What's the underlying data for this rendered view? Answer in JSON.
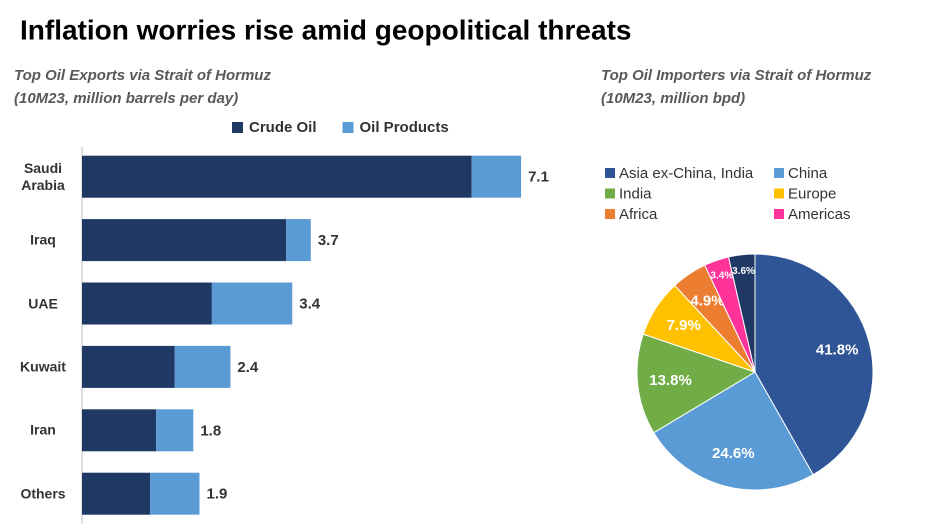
{
  "title": "Inflation worries rise amid geopolitical threats",
  "chart_data": [
    {
      "type": "bar",
      "orientation": "horizontal",
      "stacked": true,
      "subtitle": [
        "Top Oil Exports via Strait of Hormuz",
        "(10M23, million barrels per day)"
      ],
      "categories": [
        "Saudi Arabia",
        "Iraq",
        "UAE",
        "Kuwait",
        "Iran",
        "Others"
      ],
      "series": [
        {
          "name": "Crude Oil",
          "color": "#1f3864",
          "values": [
            6.3,
            3.3,
            2.1,
            1.5,
            1.2,
            1.1
          ]
        },
        {
          "name": "Oil Products",
          "color": "#5b9bd5",
          "values": [
            0.8,
            0.4,
            1.3,
            0.9,
            0.6,
            0.8
          ]
        }
      ],
      "totals": [
        7.1,
        3.7,
        3.4,
        2.4,
        1.8,
        1.9
      ],
      "xlim": [
        0,
        7.6
      ]
    },
    {
      "type": "pie",
      "subtitle": [
        "Top Oil Importers via Strait of Hormuz",
        "(10M23, million bpd)"
      ],
      "categories": [
        "Asia ex-China, India",
        "China",
        "India",
        "Europe",
        "Africa",
        "Americas",
        null
      ],
      "values": [
        41.8,
        24.6,
        13.8,
        7.9,
        4.9,
        3.4,
        3.6
      ],
      "value_labels": [
        "41.8%",
        "24.6%",
        "13.8%",
        "7.9%",
        "4.9%",
        "3.4%",
        "3.6%"
      ],
      "colors": [
        "#2f5597",
        "#5b9bd5",
        "#70ad47",
        "#ffc000",
        "#ed7d31",
        "#ff3399",
        "#1f3864"
      ]
    }
  ]
}
